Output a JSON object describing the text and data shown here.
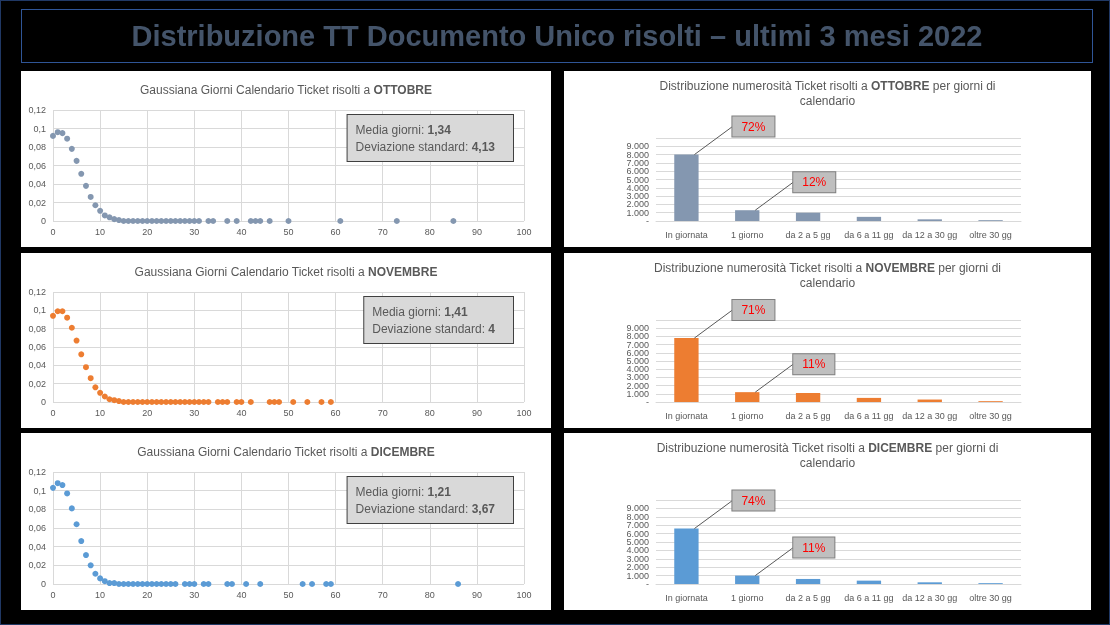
{
  "chart_data": [
    {
      "type": "other",
      "title": "Distribuzione TT Documento Unico risolti – ultimi 3 mesi 2022"
    },
    {
      "type": "scatter",
      "title": "Gaussiana Giorni Calendario Ticket risolti a OTTOBRE",
      "color": "#8497b0",
      "marker": "circle",
      "grid": true,
      "x": [
        0,
        1,
        2,
        3,
        4,
        5,
        6,
        7,
        8,
        9,
        10,
        11,
        12,
        13,
        14,
        15,
        16,
        17,
        18,
        19,
        20,
        21,
        22,
        23,
        24,
        25,
        26,
        27,
        28,
        29,
        30,
        31,
        33,
        34,
        37,
        39,
        42,
        43,
        44,
        46,
        50,
        61,
        73,
        85
      ],
      "values": [
        0.092,
        0.096,
        0.095,
        0.089,
        0.078,
        0.065,
        0.051,
        0.038,
        0.026,
        0.017,
        0.011,
        0.006,
        0.004,
        0.002,
        0.001,
        0,
        0,
        0,
        0,
        0,
        0,
        0,
        0,
        0,
        0,
        0,
        0,
        0,
        0,
        0,
        0,
        0,
        0,
        0,
        0,
        0,
        0,
        0,
        0,
        0,
        0,
        0,
        0,
        0
      ],
      "xlim": [
        0,
        100
      ],
      "xticks": [
        0,
        10,
        20,
        30,
        40,
        50,
        60,
        70,
        80,
        90,
        100
      ],
      "ylim": [
        0,
        0.12
      ],
      "yticks": [
        {
          "value": 0,
          "label": "0"
        },
        {
          "value": 0.02,
          "label": "0,02"
        },
        {
          "value": 0.04,
          "label": "0,04"
        },
        {
          "value": 0.06,
          "label": "0,06"
        },
        {
          "value": 0.08,
          "label": "0,08"
        },
        {
          "value": 0.1,
          "label": "0,1"
        },
        {
          "value": 0.12,
          "label": "0,12"
        }
      ],
      "annotations": [
        "Media giorni: 1,34",
        "Deviazione standard: 4,13"
      ]
    },
    {
      "type": "bar",
      "title": "Distribuzione numerosità Ticket risolti a OTTOBRE per giorni di calendario",
      "color": "#8497b0",
      "grid": "y",
      "categories": [
        "In giornata",
        "1 giorno",
        "da 2 a 5 gg",
        "da 6 a 11 gg",
        "da 12 a 30 gg",
        "oltre 30 gg"
      ],
      "values": [
        8000,
        1300,
        1000,
        500,
        200,
        100
      ],
      "annotations": [
        {
          "text": "72%",
          "x": "In giornata",
          "y": 8000
        },
        {
          "text": "12%",
          "x": "1 giorno",
          "y": 1300
        }
      ],
      "ylim": [
        0,
        10000
      ],
      "yticks": [
        {
          "value": 0,
          "label": "-"
        },
        {
          "value": 1000,
          "label": "1.000"
        },
        {
          "value": 2000,
          "label": "2.000"
        },
        {
          "value": 3000,
          "label": "3.000"
        },
        {
          "value": 4000,
          "label": "4.000"
        },
        {
          "value": 5000,
          "label": "5.000"
        },
        {
          "value": 6000,
          "label": "6.000"
        },
        {
          "value": 7000,
          "label": "7.000"
        },
        {
          "value": 8000,
          "label": "8.000"
        },
        {
          "value": 9000,
          "label": "9.000"
        },
        {
          "value": 10000,
          "label": null
        }
      ]
    },
    {
      "type": "scatter",
      "title": "Gaussiana Giorni Calendario Ticket risolti a NOVEMBRE",
      "color": "#ed7d31",
      "marker": "circle",
      "grid": true,
      "x": [
        0,
        1,
        2,
        3,
        4,
        5,
        6,
        7,
        8,
        9,
        10,
        11,
        12,
        13,
        14,
        15,
        16,
        17,
        18,
        19,
        20,
        21,
        22,
        23,
        24,
        25,
        26,
        27,
        28,
        29,
        30,
        31,
        32,
        33,
        35,
        36,
        37,
        39,
        40,
        42,
        46,
        47,
        48,
        51,
        54,
        57,
        59
      ],
      "values": [
        0.094,
        0.099,
        0.099,
        0.092,
        0.081,
        0.067,
        0.052,
        0.038,
        0.026,
        0.016,
        0.01,
        0.006,
        0.003,
        0.002,
        0.001,
        0,
        0,
        0,
        0,
        0,
        0,
        0,
        0,
        0,
        0,
        0,
        0,
        0,
        0,
        0,
        0,
        0,
        0,
        0,
        0,
        0,
        0,
        0,
        0,
        0,
        0,
        0,
        0,
        0,
        0,
        0,
        0
      ],
      "xlim": [
        0,
        100
      ],
      "xticks": [
        0,
        10,
        20,
        30,
        40,
        50,
        60,
        70,
        80,
        90,
        100
      ],
      "ylim": [
        0,
        0.12
      ],
      "yticks": [
        {
          "value": 0,
          "label": "0"
        },
        {
          "value": 0.02,
          "label": "0,02"
        },
        {
          "value": 0.04,
          "label": "0,04"
        },
        {
          "value": 0.06,
          "label": "0,06"
        },
        {
          "value": 0.08,
          "label": "0,08"
        },
        {
          "value": 0.1,
          "label": "0,1"
        },
        {
          "value": 0.12,
          "label": "0,12"
        }
      ],
      "annotations": [
        "Media giorni: 1,41",
        "Deviazione standard: 4"
      ]
    },
    {
      "type": "bar",
      "title": "Distribuzione numerosità Ticket risolti a NOVEMBRE per giorni di calendario",
      "color": "#ed7d31",
      "grid": "y",
      "categories": [
        "In giornata",
        "1 giorno",
        "da 2 a 5 gg",
        "da 6 a 11 gg",
        "da 12 a 30 gg",
        "oltre 30 gg"
      ],
      "values": [
        7800,
        1200,
        1100,
        500,
        300,
        100
      ],
      "annotations": [
        {
          "text": "71%",
          "x": "In giornata",
          "y": 7800
        },
        {
          "text": "11%",
          "x": "1 giorno",
          "y": 1200
        }
      ],
      "ylim": [
        0,
        10000
      ],
      "yticks": [
        {
          "value": 0,
          "label": "-"
        },
        {
          "value": 1000,
          "label": "1.000"
        },
        {
          "value": 2000,
          "label": "2.000"
        },
        {
          "value": 3000,
          "label": "3.000"
        },
        {
          "value": 4000,
          "label": "4.000"
        },
        {
          "value": 5000,
          "label": "5.000"
        },
        {
          "value": 6000,
          "label": "6.000"
        },
        {
          "value": 7000,
          "label": "7.000"
        },
        {
          "value": 8000,
          "label": "8.000"
        },
        {
          "value": 9000,
          "label": "9.000"
        },
        {
          "value": 10000,
          "label": null
        }
      ]
    },
    {
      "type": "scatter",
      "title": "Gaussiana Giorni Calendario Ticket risolti a DICEMBRE",
      "color": "#5b9bd5",
      "marker": "circle",
      "grid": true,
      "x": [
        0,
        1,
        2,
        3,
        4,
        5,
        6,
        7,
        8,
        9,
        10,
        11,
        12,
        13,
        14,
        15,
        16,
        17,
        18,
        19,
        20,
        21,
        22,
        23,
        24,
        25,
        26,
        28,
        29,
        30,
        32,
        33,
        37,
        38,
        41,
        44,
        53,
        55,
        58,
        59,
        86
      ],
      "values": [
        0.103,
        0.108,
        0.106,
        0.097,
        0.081,
        0.064,
        0.046,
        0.031,
        0.02,
        0.011,
        0.006,
        0.003,
        0.001,
        0.001,
        0,
        0,
        0,
        0,
        0,
        0,
        0,
        0,
        0,
        0,
        0,
        0,
        0,
        0,
        0,
        0,
        0,
        0,
        0,
        0,
        0,
        0,
        0,
        0,
        0,
        0,
        0
      ],
      "xlim": [
        0,
        100
      ],
      "xticks": [
        0,
        10,
        20,
        30,
        40,
        50,
        60,
        70,
        80,
        90,
        100
      ],
      "ylim": [
        0,
        0.12
      ],
      "yticks": [
        {
          "value": 0,
          "label": "0"
        },
        {
          "value": 0.02,
          "label": "0,02"
        },
        {
          "value": 0.04,
          "label": "0,04"
        },
        {
          "value": 0.06,
          "label": "0,06"
        },
        {
          "value": 0.08,
          "label": "0,08"
        },
        {
          "value": 0.1,
          "label": "0,1"
        },
        {
          "value": 0.12,
          "label": "0,12"
        }
      ],
      "annotations": [
        "Media giorni: 1,21",
        "Deviazione standard: 3,67"
      ]
    },
    {
      "type": "bar",
      "title": "Distribuzione numerosità Ticket risolti a DICEMBRE per giorni di calendario",
      "color": "#5b9bd5",
      "grid": "y",
      "categories": [
        "In giornata",
        "1 giorno",
        "da 2 a 5 gg",
        "da 6 a 11 gg",
        "da 12 a 30 gg",
        "oltre 30 gg"
      ],
      "values": [
        6600,
        1000,
        600,
        400,
        200,
        100
      ],
      "annotations": [
        {
          "text": "74%",
          "x": "In giornata",
          "y": 6600
        },
        {
          "text": "11%",
          "x": "1 giorno",
          "y": 1000
        }
      ],
      "ylim": [
        0,
        10000
      ],
      "yticks": [
        {
          "value": 0,
          "label": "-"
        },
        {
          "value": 1000,
          "label": "1.000"
        },
        {
          "value": 2000,
          "label": "2.000"
        },
        {
          "value": 3000,
          "label": "3.000"
        },
        {
          "value": 4000,
          "label": "4.000"
        },
        {
          "value": 5000,
          "label": "5.000"
        },
        {
          "value": 6000,
          "label": "6.000"
        },
        {
          "value": 7000,
          "label": "7.000"
        },
        {
          "value": 8000,
          "label": "8.000"
        },
        {
          "value": 9000,
          "label": "9.000"
        },
        {
          "value": 10000,
          "label": null
        }
      ]
    }
  ]
}
